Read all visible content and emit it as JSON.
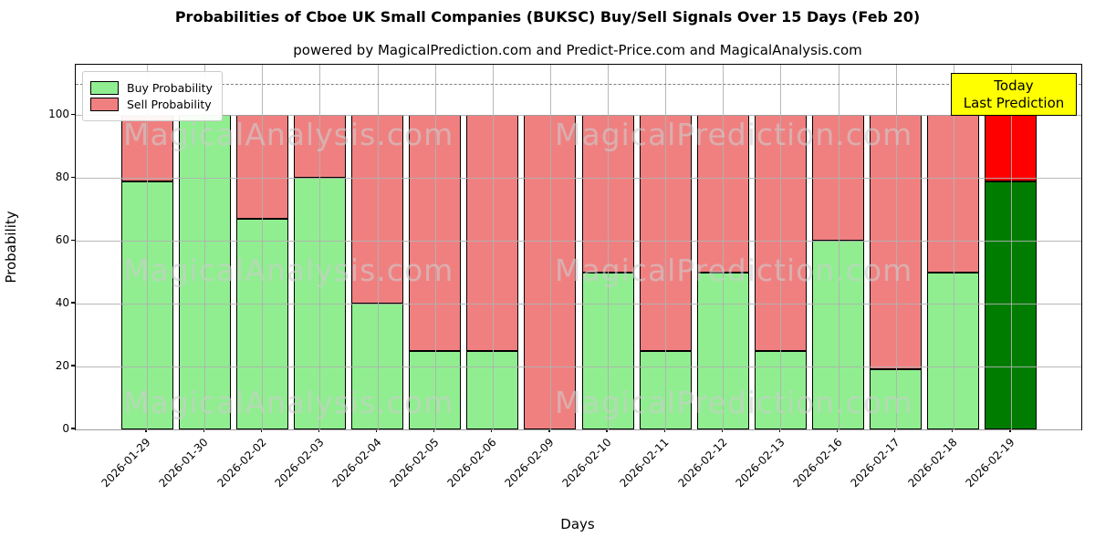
{
  "title": "Probabilities of Cboe UK Small Companies (BUKSC) Buy/Sell Signals Over 15 Days (Feb 20)",
  "subtitle": "powered by MagicalPrediction.com and Predict-Price.com and MagicalAnalysis.com",
  "watermarks": {
    "left_text": "MagicalAnalysis.com",
    "right_text": "MagicalPrediction.com"
  },
  "legend": {
    "items": [
      {
        "label": "Buy Probability",
        "color": "#90ee90"
      },
      {
        "label": "Sell Probability",
        "color": "#f08080"
      }
    ]
  },
  "annotation": {
    "line1": "Today",
    "line2": "Last Prediction",
    "bg_color": "#ffff00"
  },
  "chart_data": {
    "type": "bar",
    "stacked": true,
    "title": "Probabilities of Cboe UK Small Companies (BUKSC) Buy/Sell Signals Over 15 Days (Feb 20)",
    "xlabel": "Days",
    "ylabel": "Probability",
    "categories": [
      "2026-01-29",
      "2026-01-30",
      "2026-02-02",
      "2026-02-03",
      "2026-02-04",
      "2026-02-05",
      "2026-02-06",
      "2026-02-09",
      "2026-02-10",
      "2026-02-11",
      "2026-02-12",
      "2026-02-13",
      "2026-02-16",
      "2026-02-17",
      "2026-02-18",
      "2026-02-19"
    ],
    "series": [
      {
        "name": "Buy Probability",
        "color": "#90ee90",
        "today_color": "#007d00",
        "values": [
          79,
          100,
          67,
          80,
          40,
          25,
          25,
          0,
          50,
          25,
          50,
          25,
          60,
          19,
          50,
          79
        ]
      },
      {
        "name": "Sell Probability",
        "color": "#f08080",
        "today_color": "#ff0000",
        "values": [
          21,
          0,
          33,
          20,
          60,
          75,
          75,
          100,
          50,
          75,
          50,
          75,
          40,
          81,
          50,
          21
        ]
      }
    ],
    "yticks": [
      0,
      20,
      40,
      60,
      80,
      100
    ],
    "ylim": [
      0,
      116
    ],
    "threshold_line_y": 110,
    "grid": true,
    "legend_position": "upper left",
    "today_index": 15
  }
}
